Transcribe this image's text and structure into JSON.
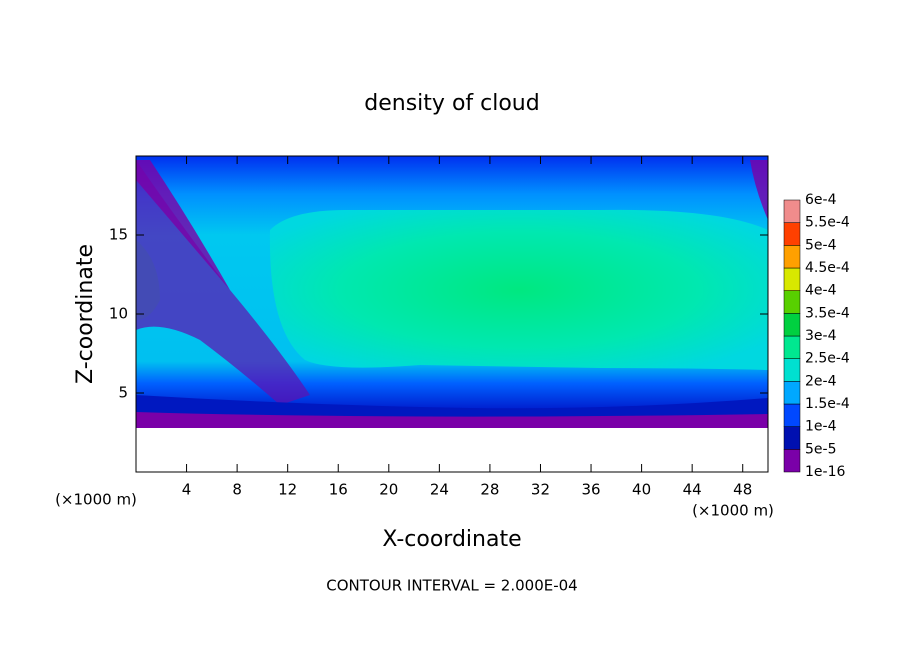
{
  "chart_data": {
    "type": "contour",
    "title": "density of cloud",
    "x_label": "X-coordinate",
    "y_label": "Z-coordinate",
    "x_unit_label": "(×1000 m)",
    "y_unit_label": "(×1000 m)",
    "annotation": "CONTOUR INTERVAL = 2.000E-04",
    "xlim": [
      0,
      50
    ],
    "ylim": [
      0,
      20
    ],
    "xticks": [
      4,
      8,
      12,
      16,
      20,
      24,
      28,
      32,
      36,
      40,
      44,
      48
    ],
    "yticks": [
      5,
      10,
      15
    ],
    "colorbar": {
      "levels": [
        {
          "value": 1e-16,
          "label": "1e-16"
        },
        {
          "value": 5e-05,
          "label": "5e-5"
        },
        {
          "value": 0.0001,
          "label": "1e-4"
        },
        {
          "value": 0.00015,
          "label": "1.5e-4"
        },
        {
          "value": 0.0002,
          "label": "2e-4"
        },
        {
          "value": 0.00025,
          "label": "2.5e-4"
        },
        {
          "value": 0.0003,
          "label": "3e-4"
        },
        {
          "value": 0.00035,
          "label": "3.5e-4"
        },
        {
          "value": 0.0004,
          "label": "4e-4"
        },
        {
          "value": 0.00045,
          "label": "4.5e-4"
        },
        {
          "value": 0.0005,
          "label": "5e-4"
        },
        {
          "value": 0.00055,
          "label": "5.5e-4"
        },
        {
          "value": 0.0006,
          "label": "6e-4"
        }
      ],
      "colors": [
        "#7a00a8",
        "#0010b0",
        "#0048ff",
        "#00a8ff",
        "#00e0d0",
        "#00e890",
        "#00d040",
        "#58d000",
        "#d8e800",
        "#ffa000",
        "#ff4000",
        "#f08c8c"
      ]
    }
  }
}
